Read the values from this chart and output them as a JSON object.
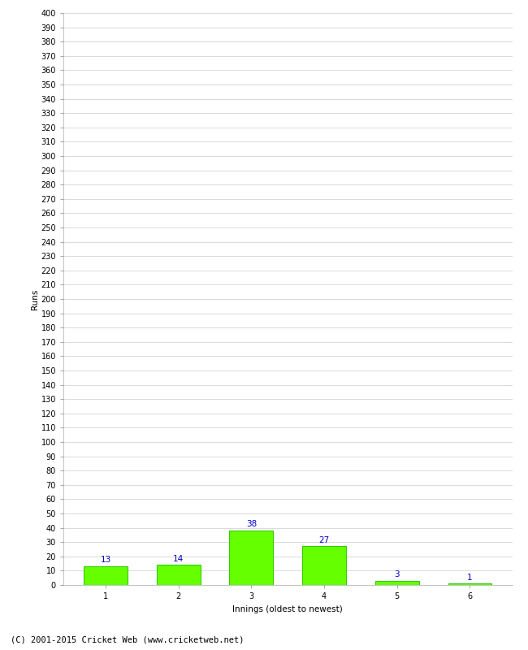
{
  "categories": [
    1,
    2,
    3,
    4,
    5,
    6
  ],
  "values": [
    13,
    14,
    38,
    27,
    3,
    1
  ],
  "bar_color": "#66ff00",
  "bar_edge_color": "#33cc00",
  "label_color": "#0000cc",
  "xlabel": "Innings (oldest to newest)",
  "ylabel": "Runs",
  "ylim": [
    0,
    400
  ],
  "ytick_step": 10,
  "footer": "(C) 2001-2015 Cricket Web (www.cricketweb.net)",
  "background_color": "#ffffff",
  "grid_color": "#cccccc",
  "label_fontsize": 7.5,
  "axis_tick_fontsize": 7,
  "xlabel_fontsize": 7.5,
  "ylabel_fontsize": 7.5,
  "footer_fontsize": 7.5
}
